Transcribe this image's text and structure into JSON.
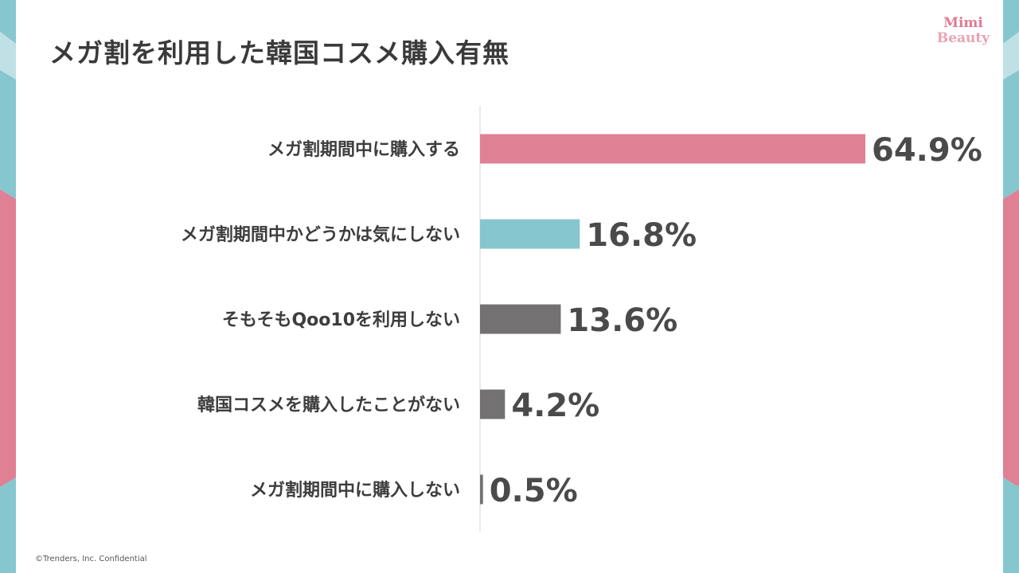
{
  "slide": {
    "title": "メガ割を利用した韓国コスメ購入有無",
    "logo_line1": "Mimi",
    "logo_line2": "Beauty",
    "footer": "©Trenders, Inc.  Confidential"
  },
  "colors": {
    "pink": "#e08094",
    "teal": "#86c6cf",
    "gray": "#737172",
    "label_text": "#3d3d3d",
    "axis": "#d6d6d6"
  },
  "chart_data": {
    "type": "bar",
    "orientation": "horizontal",
    "categories": [
      "メガ割期間中に購入する",
      "メガ割期間中かどうかは気にしない",
      "そもそもQoo10を利用しない",
      "韓国コスメを購入したことがない",
      "メガ割期間中に購入しない"
    ],
    "values": [
      64.9,
      16.8,
      13.6,
      4.2,
      0.5
    ],
    "value_labels": [
      "64.9%",
      "16.8%",
      "13.6%",
      "4.2%",
      "0.5%"
    ],
    "bar_colors": [
      "#e08094",
      "#86c6cf",
      "#737172",
      "#737172",
      "#737172"
    ],
    "title": "",
    "xlabel": "",
    "ylabel": "",
    "xlim": [
      0,
      64.9
    ],
    "grid": false,
    "legend": "none"
  }
}
